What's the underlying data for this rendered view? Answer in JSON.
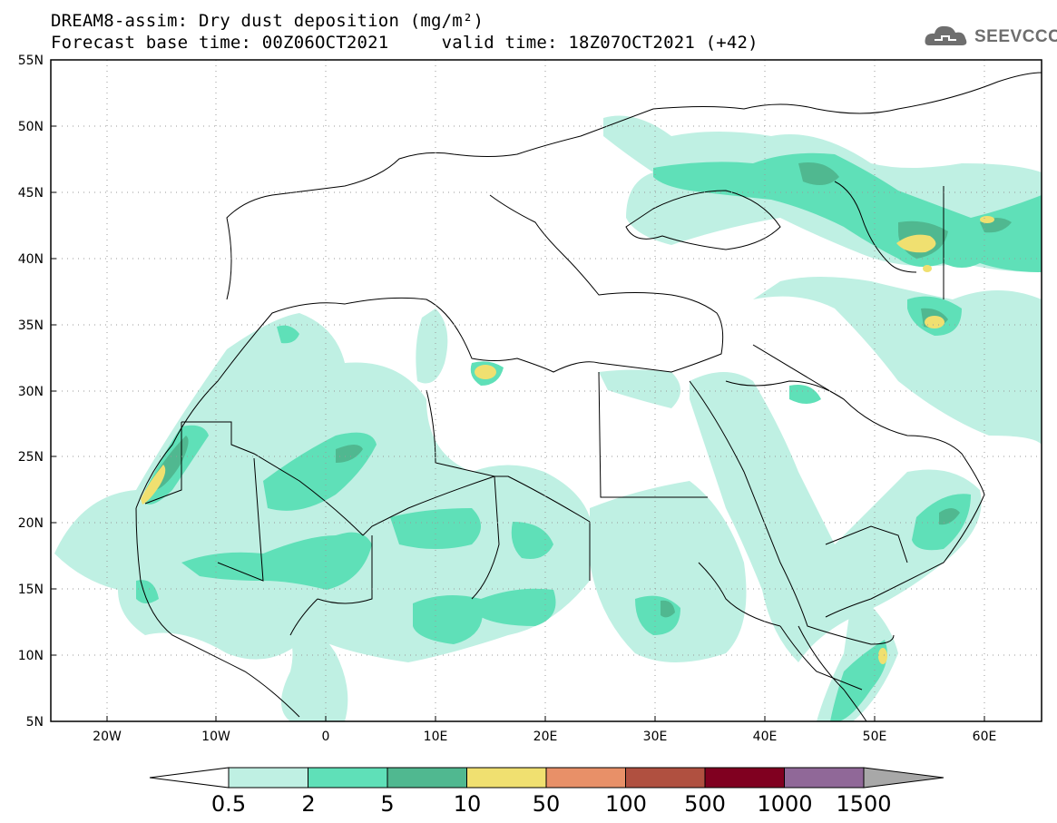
{
  "header": {
    "title_line1": "DREAM8-assim: Dry dust deposition (mg/m²)",
    "title_line2_left": "Forecast base time: 00Z06OCT2021",
    "title_line2_right": "valid time: 18Z07OCT2021 (+42)",
    "logo_text": "SEEVCCC"
  },
  "map": {
    "lat_labels": [
      "55N",
      "50N",
      "45N",
      "40N",
      "35N",
      "30N",
      "25N",
      "20N",
      "15N",
      "10N",
      "5N"
    ],
    "lon_labels": [
      "20W",
      "10W",
      "0",
      "10E",
      "20E",
      "30E",
      "40E",
      "50E",
      "60E"
    ],
    "lat_range": [
      5,
      55
    ],
    "lon_range": [
      -25,
      65
    ],
    "grid": "dotted"
  },
  "colorbar": {
    "levels": [
      "0.5",
      "2",
      "5",
      "10",
      "50",
      "100",
      "500",
      "1000",
      "1500"
    ],
    "colors": [
      "#bff0e3",
      "#5fe0b8",
      "#50b890",
      "#f0e070",
      "#e89068",
      "#b05040",
      "#800020",
      "#906898",
      "#a8a8a8"
    ],
    "left_arrow_color": "#ffffff"
  },
  "dust_areas": [
    {
      "name": "west-sahara-coast",
      "level": 3
    },
    {
      "name": "libya-coast",
      "level": 3
    },
    {
      "name": "caspian",
      "level": 3
    },
    {
      "name": "iran-north",
      "level": 3
    },
    {
      "name": "somalia-coast",
      "level": 3
    }
  ]
}
